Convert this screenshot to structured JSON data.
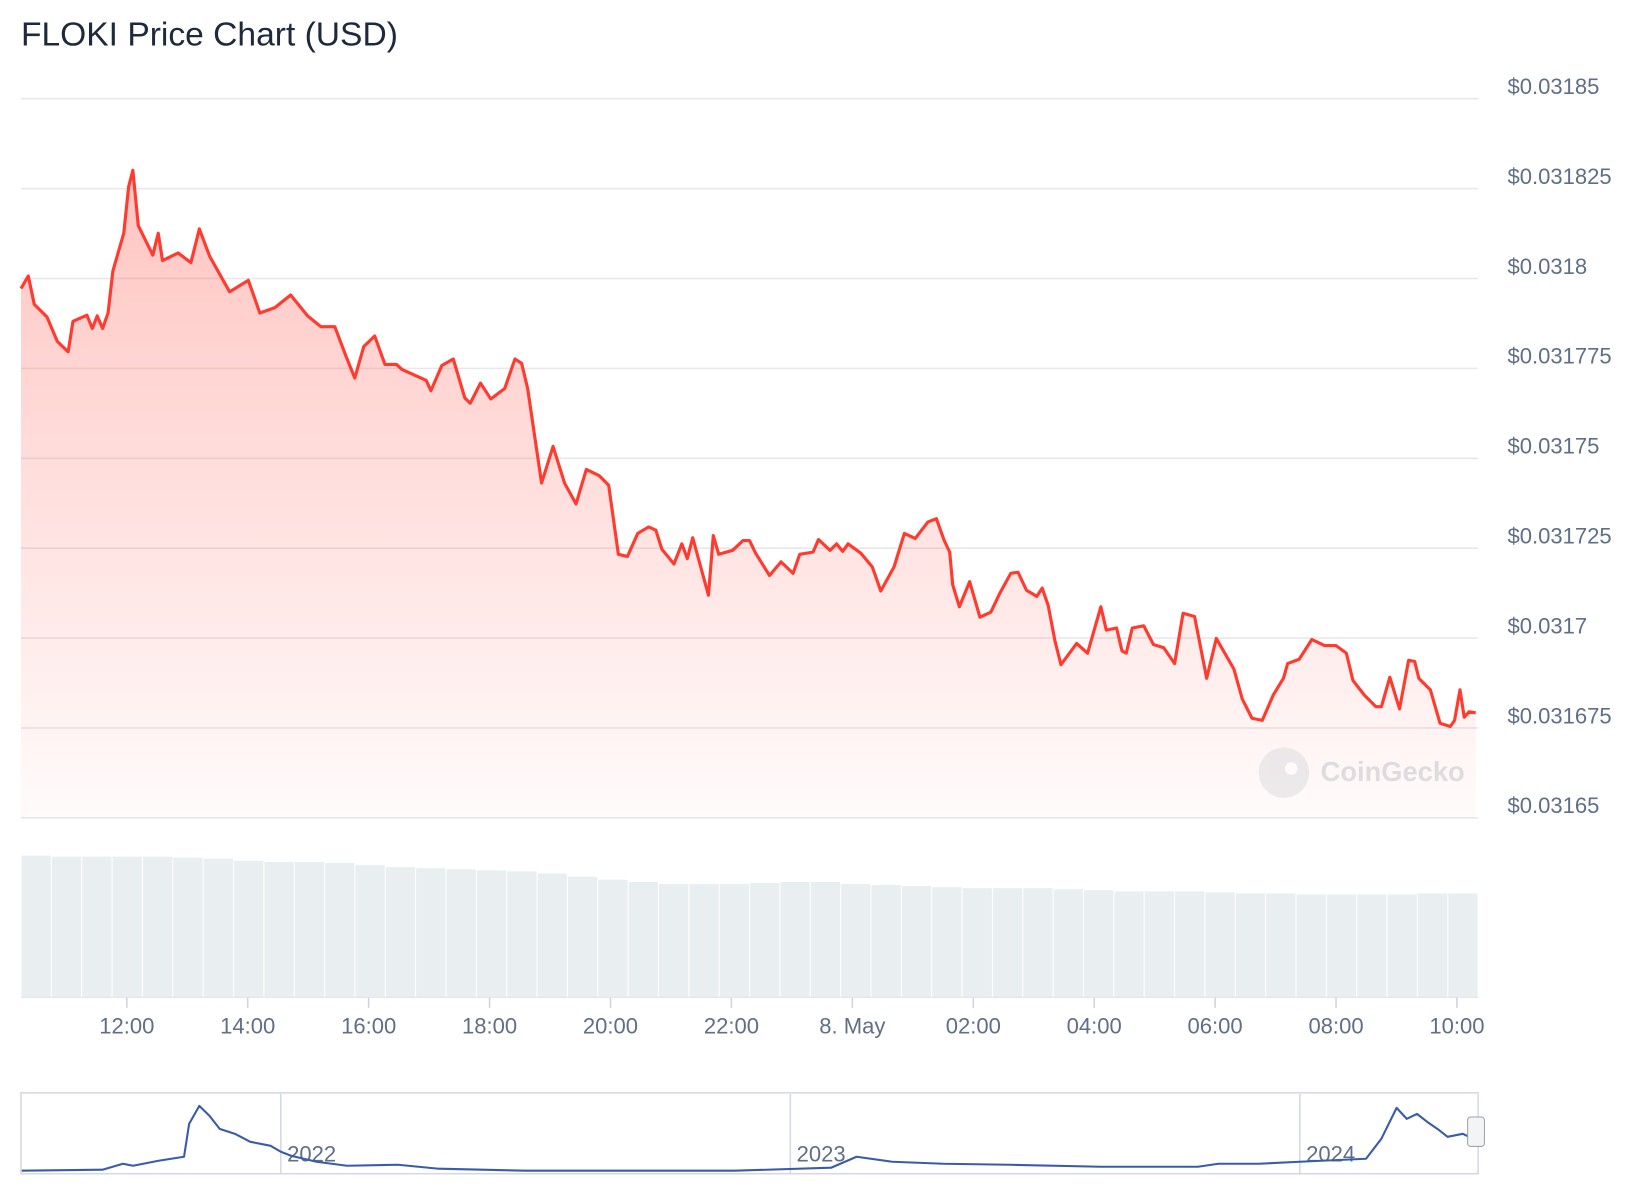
{
  "chart_data": [
    {
      "type": "line",
      "title": "FLOKI Price Chart (USD)",
      "watermark": "CoinGecko",
      "color": "#ff3b30",
      "grid": true,
      "xlim": [
        10.25,
        34.35
      ],
      "ylim": [
        0.03165,
        0.03185
      ],
      "yticks": [
        {
          "value": 0.03185,
          "label": "$0.03185"
        },
        {
          "value": 0.031825,
          "label": "$0.031825"
        },
        {
          "value": 0.0318,
          "label": "$0.0318"
        },
        {
          "value": 0.031775,
          "label": "$0.031775"
        },
        {
          "value": 0.03175,
          "label": "$0.03175"
        },
        {
          "value": 0.031725,
          "label": "$0.031725"
        },
        {
          "value": 0.0317,
          "label": "$0.0317"
        },
        {
          "value": 0.031675,
          "label": "$0.031675"
        },
        {
          "value": 0.03165,
          "label": "$0.03165"
        }
      ],
      "xticks": [
        {
          "value": 12,
          "label": "12:00"
        },
        {
          "value": 14,
          "label": "14:00"
        },
        {
          "value": 16,
          "label": "16:00"
        },
        {
          "value": 18,
          "label": "18:00"
        },
        {
          "value": 20,
          "label": "20:00"
        },
        {
          "value": 22,
          "label": "22:00"
        },
        {
          "value": 24,
          "label": "8. May"
        },
        {
          "value": 26,
          "label": "02:00"
        },
        {
          "value": 28,
          "label": "04:00"
        },
        {
          "value": 30,
          "label": "06:00"
        },
        {
          "value": 32,
          "label": "08:00"
        },
        {
          "value": 34,
          "label": "10:00"
        }
      ],
      "x": [
        10.25,
        10.37,
        10.47,
        10.68,
        10.85,
        11.03,
        11.11,
        11.34,
        11.43,
        11.51,
        11.6,
        11.69,
        11.77,
        11.95,
        12.03,
        12.1,
        12.19,
        12.43,
        12.52,
        12.59,
        12.85,
        13.06,
        13.2,
        13.37,
        13.7,
        14.01,
        14.2,
        14.45,
        14.71,
        14.99,
        15.21,
        15.44,
        15.63,
        15.77,
        15.92,
        16.1,
        16.27,
        16.46,
        16.55,
        16.95,
        17.03,
        17.21,
        17.4,
        17.59,
        17.68,
        17.85,
        18.02,
        18.25,
        18.42,
        18.53,
        18.63,
        18.86,
        19.05,
        19.24,
        19.43,
        19.6,
        19.81,
        19.97,
        20.13,
        20.28,
        20.45,
        20.63,
        20.75,
        20.85,
        21.05,
        21.18,
        21.27,
        21.36,
        21.62,
        21.7,
        21.79,
        22.02,
        22.19,
        22.3,
        22.4,
        22.63,
        22.82,
        23.02,
        23.13,
        23.35,
        23.44,
        23.63,
        23.74,
        23.84,
        23.93,
        24.14,
        24.33,
        24.47,
        24.69,
        24.86,
        25.04,
        25.25,
        25.39,
        25.52,
        25.61,
        25.66,
        25.77,
        25.94,
        26.11,
        26.29,
        26.44,
        26.62,
        26.74,
        26.88,
        27.05,
        27.14,
        27.24,
        27.35,
        27.45,
        27.71,
        27.89,
        28.11,
        28.2,
        28.37,
        28.46,
        28.53,
        28.63,
        28.82,
        28.98,
        29.15,
        29.33,
        29.47,
        29.66,
        29.86,
        30.02,
        30.31,
        30.45,
        30.61,
        30.78,
        30.96,
        31.13,
        31.2,
        31.39,
        31.6,
        31.81,
        32.0,
        32.17,
        32.28,
        32.47,
        32.66,
        32.75,
        32.89,
        33.05,
        33.2,
        33.3,
        33.37,
        33.56,
        33.72,
        33.89,
        33.96,
        34.05,
        34.12,
        34.2,
        34.31
      ],
      "values": [
        0.0317972,
        0.0318007,
        0.0317928,
        0.0317893,
        0.0317825,
        0.0317796,
        0.0317881,
        0.0317898,
        0.0317861,
        0.0317896,
        0.0317861,
        0.0317904,
        0.0318021,
        0.0318126,
        0.0318255,
        0.0318301,
        0.0318147,
        0.0318065,
        0.0318126,
        0.031805,
        0.0318071,
        0.0318044,
        0.0318138,
        0.0318062,
        0.0317963,
        0.0317995,
        0.0317904,
        0.0317919,
        0.0317954,
        0.0317896,
        0.0317866,
        0.0317866,
        0.0317782,
        0.0317723,
        0.0317811,
        0.031784,
        0.0317761,
        0.0317761,
        0.0317747,
        0.0317717,
        0.0317688,
        0.0317758,
        0.0317776,
        0.0317668,
        0.0317653,
        0.0317709,
        0.0317665,
        0.0317694,
        0.0317776,
        0.0317764,
        0.0317694,
        0.0317431,
        0.0317533,
        0.0317431,
        0.0317373,
        0.0317469,
        0.0317452,
        0.0317425,
        0.0317233,
        0.0317227,
        0.0317291,
        0.0317309,
        0.03173,
        0.0317247,
        0.0317206,
        0.0317262,
        0.0317221,
        0.0317279,
        0.0317119,
        0.0317285,
        0.0317233,
        0.0317244,
        0.0317271,
        0.0317271,
        0.0317236,
        0.0317174,
        0.0317212,
        0.031718,
        0.0317233,
        0.0317239,
        0.0317274,
        0.0317244,
        0.0317262,
        0.0317241,
        0.0317262,
        0.0317236,
        0.0317198,
        0.0317131,
        0.0317198,
        0.0317291,
        0.0317277,
        0.0317323,
        0.0317332,
        0.0317271,
        0.0317239,
        0.0317148,
        0.0317087,
        0.0317157,
        0.0317058,
        0.0317072,
        0.0317125,
        0.031718,
        0.0317183,
        0.0317133,
        0.0317116,
        0.0317139,
        0.031709,
        0.0316993,
        0.0316926,
        0.0316985,
        0.0316958,
        0.0317087,
        0.0317022,
        0.0317028,
        0.0316964,
        0.0316958,
        0.0317028,
        0.0317034,
        0.0316982,
        0.0316973,
        0.0316929,
        0.0317069,
        0.031706,
        0.0316888,
        0.0316999,
        0.0316914,
        0.031683,
        0.0316777,
        0.0316771,
        0.0316841,
        0.0316888,
        0.0316929,
        0.0316941,
        0.0316996,
        0.0316979,
        0.0316979,
        0.0316958,
        0.0316882,
        0.0316841,
        0.0316809,
        0.0316809,
        0.0316891,
        0.0316803,
        0.0316938,
        0.0316935,
        0.0316888,
        0.0316856,
        0.0316763,
        0.0316754,
        0.0316771,
        0.0316856,
        0.031678,
        0.0316795,
        0.0316792
      ],
      "volume": {
        "type": "bar",
        "color": "#e9eef1",
        "ylim": [
          0,
          140
        ],
        "values": [
          135,
          134,
          134,
          134,
          134,
          133,
          132,
          130,
          129,
          129,
          128,
          126,
          124,
          123,
          122,
          121,
          120,
          118,
          115,
          112,
          110,
          108,
          108,
          108,
          109,
          110,
          110,
          108,
          107,
          106,
          105,
          104,
          104,
          104,
          103,
          102,
          101,
          101,
          101,
          100,
          99,
          99,
          98,
          98,
          98,
          98,
          99,
          99
        ]
      }
    },
    {
      "type": "line",
      "color": "#3a5ba8",
      "xlim": [
        2021.49,
        2024.35
      ],
      "ylim": [
        0,
        80
      ],
      "grid": true,
      "xticks": [
        2022,
        2023,
        2024
      ],
      "x": [
        2021.49,
        2021.65,
        2021.69,
        2021.71,
        2021.76,
        2021.81,
        2021.82,
        2021.84,
        2021.86,
        2021.88,
        2021.91,
        2021.94,
        2021.98,
        2022.0,
        2022.02,
        2022.07,
        2022.13,
        2022.23,
        2022.31,
        2022.48,
        2022.69,
        2022.89,
        2023.08,
        2023.13,
        2023.2,
        2023.3,
        2023.43,
        2023.61,
        2023.8,
        2023.84,
        2023.92,
        2024.0,
        2024.13,
        2024.16,
        2024.19,
        2024.21,
        2024.23,
        2024.25,
        2024.27,
        2024.29,
        2024.32,
        2024.34
      ],
      "values": [
        3,
        4,
        10,
        8,
        13,
        17,
        50,
        68,
        58,
        45,
        40,
        32,
        28,
        22,
        18,
        12,
        8,
        9,
        5,
        3,
        3,
        3,
        6,
        17,
        12,
        10,
        9,
        7,
        7,
        10,
        10,
        12,
        15,
        35,
        66,
        55,
        60,
        52,
        45,
        37,
        40,
        35
      ]
    }
  ]
}
